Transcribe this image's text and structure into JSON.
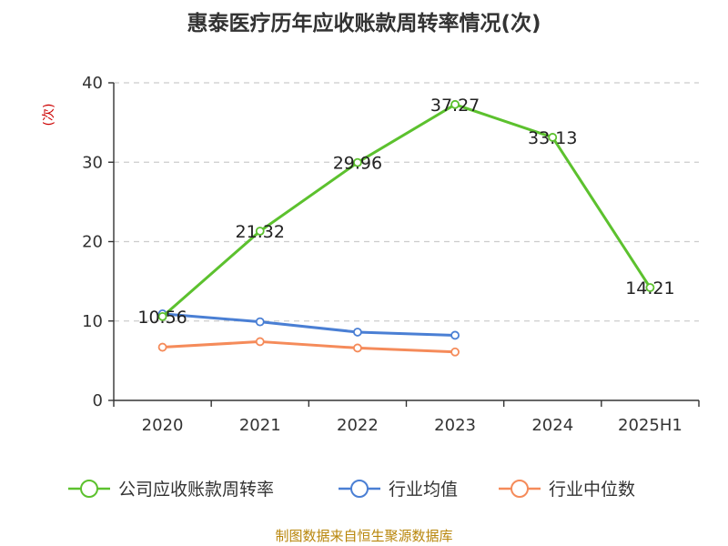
{
  "chart_data": {
    "type": "line",
    "title": "惠泰医疗历年应收账款周转率情况(次)",
    "ylabel": "(次)",
    "xlabel": "",
    "categories": [
      "2020",
      "2021",
      "2022",
      "2023",
      "2024",
      "2025H1"
    ],
    "ylim": [
      0,
      40
    ],
    "yticks": [
      0,
      10,
      20,
      30,
      40
    ],
    "grid": true,
    "legend_position": "bottom",
    "series": [
      {
        "name": "公司应收账款周转率",
        "color": "#5cc12e",
        "values": [
          10.56,
          21.32,
          29.96,
          37.27,
          33.13,
          14.21
        ],
        "labels": [
          "10.56",
          "21.32",
          "29.96",
          "37.27",
          "33.13",
          "14.21"
        ]
      },
      {
        "name": "行业均值",
        "color": "#4a7fd4",
        "values": [
          10.9,
          9.9,
          8.6,
          8.2,
          null,
          null
        ],
        "labels": []
      },
      {
        "name": "行业中位数",
        "color": "#f58b5a",
        "values": [
          6.7,
          7.4,
          6.6,
          6.1,
          null,
          null
        ],
        "labels": []
      }
    ],
    "source": "制图数据来自恒生聚源数据库"
  }
}
